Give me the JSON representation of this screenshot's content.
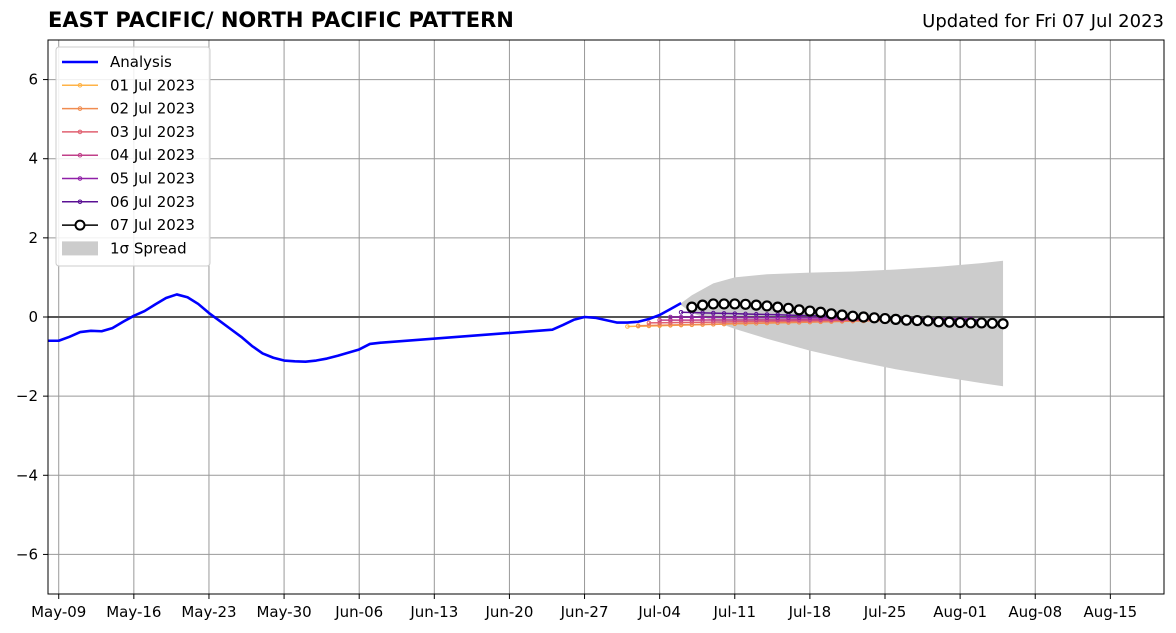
{
  "header": {
    "title": "EAST PACIFIC/ NORTH PACIFIC PATTERN",
    "updated": "Updated for Fri 07 Jul 2023"
  },
  "colors": {
    "analysis": "#0000ff",
    "spread": "#cccccc",
    "grid": "#999999",
    "zero_line": "#555555",
    "fc_0701": "#ffb347",
    "fc_0702": "#f08c50",
    "fc_0703": "#e06070",
    "fc_0704": "#c0408a",
    "fc_0705": "#9020a8",
    "fc_0706": "#5a1094",
    "fc_0707": "#000000"
  },
  "chart_data": {
    "type": "line",
    "title": "EAST PACIFIC/ NORTH PACIFIC PATTERN",
    "xlabel": "",
    "ylabel": "",
    "xlim": [
      "2023-05-08",
      "2023-08-20"
    ],
    "ylim": [
      -7,
      7
    ],
    "grid": true,
    "legend_position": "upper left",
    "x_ticks": [
      "May-09",
      "May-16",
      "May-23",
      "May-30",
      "Jun-06",
      "Jun-13",
      "Jun-20",
      "Jun-27",
      "Jul-04",
      "Jul-11",
      "Jul-18",
      "Jul-25",
      "Aug-01",
      "Aug-08",
      "Aug-15"
    ],
    "y_ticks": [
      "6",
      "4",
      "2",
      "0",
      "−2",
      "−4",
      "−6"
    ],
    "legend": [
      "Analysis",
      "01 Jul 2023",
      "02 Jul 2023",
      "03 Jul 2023",
      "04 Jul 2023",
      "05 Jul 2023",
      "06 Jul 2023",
      "07 Jul 2023",
      "1σ Spread"
    ],
    "analysis": {
      "name": "Analysis",
      "x": [
        "2023-05-08",
        "2023-05-09",
        "2023-05-10",
        "2023-05-11",
        "2023-05-12",
        "2023-05-13",
        "2023-05-14",
        "2023-05-15",
        "2023-05-16",
        "2023-05-17",
        "2023-05-18",
        "2023-05-19",
        "2023-05-20",
        "2023-05-21",
        "2023-05-22",
        "2023-05-23",
        "2023-05-24",
        "2023-05-25",
        "2023-05-26",
        "2023-05-27",
        "2023-05-28",
        "2023-05-29",
        "2023-05-30",
        "2023-05-31",
        "2023-06-01",
        "2023-06-02",
        "2023-06-03",
        "2023-06-04",
        "2023-06-05",
        "2023-06-06",
        "2023-06-07",
        "2023-06-08",
        "2023-06-09",
        "2023-06-24",
        "2023-06-25",
        "2023-06-26",
        "2023-06-27",
        "2023-06-28",
        "2023-06-29",
        "2023-06-30",
        "2023-07-01",
        "2023-07-02",
        "2023-07-03",
        "2023-07-04",
        "2023-07-05",
        "2023-07-06",
        "2023-07-07"
      ],
      "y": [
        -0.6,
        -0.6,
        -0.5,
        -0.38,
        -0.35,
        -0.36,
        -0.28,
        -0.12,
        0.03,
        0.15,
        0.32,
        0.48,
        0.57,
        0.5,
        0.33,
        0.1,
        -0.3,
        -0.5,
        -0.73,
        -0.92,
        -1.03,
        -1.1,
        -1.12,
        -1.13,
        -1.1,
        -1.05,
        -0.98,
        -0.9,
        -0.82,
        -0.68,
        -0.65,
        -0.63,
        -0.62,
        -0.32,
        -0.12,
        -0.02,
        0.0,
        -0.02,
        -0.12,
        -0.14,
        -0.13,
        -0.12,
        0.02,
        0.18,
        0.33,
        null,
        null
      ]
    },
    "analysis_points": [
      [
        "2023-05-08",
        -0.6
      ],
      [
        "2023-05-09",
        -0.6
      ],
      [
        "2023-05-10",
        -0.5
      ],
      [
        "2023-05-11",
        -0.38
      ],
      [
        "2023-05-12",
        -0.35
      ],
      [
        "2023-05-13",
        -0.36
      ],
      [
        "2023-05-14",
        -0.28
      ],
      [
        "2023-05-15",
        -0.12
      ],
      [
        "2023-05-16",
        0.03
      ],
      [
        "2023-05-17",
        0.15
      ],
      [
        "2023-05-18",
        0.32
      ],
      [
        "2023-05-19",
        0.48
      ],
      [
        "2023-05-20",
        0.57
      ],
      [
        "2023-05-21",
        0.5
      ],
      [
        "2023-05-22",
        0.33
      ],
      [
        "2023-05-23",
        0.1
      ],
      [
        "2023-05-24",
        -0.1
      ],
      [
        "2023-05-25",
        -0.3
      ],
      [
        "2023-05-26",
        -0.5
      ],
      [
        "2023-05-27",
        -0.73
      ],
      [
        "2023-05-28",
        -0.92
      ],
      [
        "2023-05-29",
        -1.03
      ],
      [
        "2023-05-30",
        -1.1
      ],
      [
        "2023-05-31",
        -1.12
      ],
      [
        "2023-06-01",
        -1.13
      ],
      [
        "2023-06-02",
        -1.1
      ],
      [
        "2023-06-03",
        -1.05
      ],
      [
        "2023-06-04",
        -0.98
      ],
      [
        "2023-06-05",
        -0.9
      ],
      [
        "2023-06-06",
        -0.82
      ],
      [
        "2023-06-07",
        -0.68
      ],
      [
        "2023-06-08",
        -0.65
      ],
      [
        "2023-06-24",
        -0.32
      ],
      [
        "2023-06-25",
        -0.2
      ],
      [
        "2023-06-26",
        -0.07
      ],
      [
        "2023-06-27",
        0.0
      ],
      [
        "2023-06-28",
        -0.02
      ],
      [
        "2023-06-29",
        -0.08
      ],
      [
        "2023-06-30",
        -0.14
      ],
      [
        "2023-07-01",
        -0.14
      ],
      [
        "2023-07-02",
        -0.12
      ],
      [
        "2023-07-03",
        -0.05
      ],
      [
        "2023-07-04",
        0.05
      ],
      [
        "2023-07-05",
        0.2
      ],
      [
        "2023-07-06",
        0.35
      ]
    ],
    "forecasts": [
      {
        "name": "01 Jul 2023",
        "color_key": "fc_0701",
        "start": "2023-07-01",
        "end": "2023-07-29",
        "y0": -0.24,
        "y1": -0.05
      },
      {
        "name": "02 Jul 2023",
        "color_key": "fc_0702",
        "start": "2023-07-02",
        "end": "2023-07-30",
        "y0": -0.22,
        "y1": -0.06
      },
      {
        "name": "03 Jul 2023",
        "color_key": "fc_0703",
        "start": "2023-07-03",
        "end": "2023-07-31",
        "y0": -0.15,
        "y1": -0.05
      },
      {
        "name": "04 Jul 2023",
        "color_key": "fc_0704",
        "start": "2023-07-04",
        "end": "2023-08-01",
        "y0": -0.08,
        "y1": -0.06
      },
      {
        "name": "05 Jul 2023",
        "color_key": "fc_0705",
        "start": "2023-07-05",
        "end": "2023-08-02",
        "y0": 0.0,
        "y1": -0.05
      },
      {
        "name": "06 Jul 2023",
        "color_key": "fc_0706",
        "start": "2023-07-06",
        "end": "2023-08-03",
        "y0": 0.12,
        "y1": -0.08
      }
    ],
    "forecast_0707": {
      "name": "07 Jul 2023",
      "x": [
        "2023-07-07",
        "2023-07-08",
        "2023-07-09",
        "2023-07-10",
        "2023-07-11",
        "2023-07-12",
        "2023-07-13",
        "2023-07-14",
        "2023-07-15",
        "2023-07-16",
        "2023-07-17",
        "2023-07-18",
        "2023-07-19",
        "2023-07-20",
        "2023-07-21",
        "2023-07-22",
        "2023-07-23",
        "2023-07-24",
        "2023-07-25",
        "2023-07-26",
        "2023-07-27",
        "2023-07-28",
        "2023-07-29",
        "2023-07-30",
        "2023-07-31",
        "2023-08-01",
        "2023-08-02",
        "2023-08-03",
        "2023-08-04",
        "2023-08-05"
      ],
      "y": [
        0.25,
        0.3,
        0.33,
        0.33,
        0.33,
        0.32,
        0.3,
        0.28,
        0.25,
        0.22,
        0.18,
        0.15,
        0.12,
        0.08,
        0.05,
        0.02,
        0.0,
        -0.02,
        -0.04,
        -0.06,
        -0.08,
        -0.09,
        -0.1,
        -0.12,
        -0.13,
        -0.14,
        -0.15,
        -0.15,
        -0.16,
        -0.17
      ]
    },
    "spread": {
      "name": "1σ Spread",
      "x": [
        "2023-07-06",
        "2023-07-07",
        "2023-07-09",
        "2023-07-11",
        "2023-07-14",
        "2023-07-18",
        "2023-07-22",
        "2023-07-26",
        "2023-07-30",
        "2023-08-03",
        "2023-08-05"
      ],
      "upper": [
        0.35,
        0.55,
        0.85,
        1.0,
        1.08,
        1.12,
        1.15,
        1.2,
        1.27,
        1.36,
        1.42
      ],
      "lower": [
        0.3,
        0.1,
        -0.1,
        -0.3,
        -0.55,
        -0.85,
        -1.1,
        -1.32,
        -1.5,
        -1.67,
        -1.75
      ]
    }
  }
}
